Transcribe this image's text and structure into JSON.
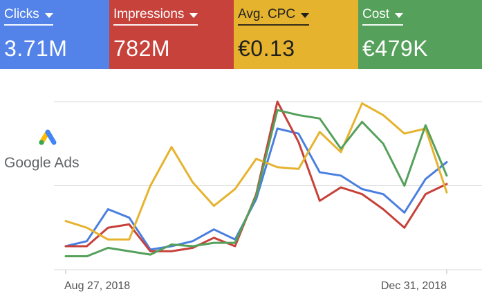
{
  "metrics": [
    {
      "label": "Clicks",
      "value": "3.71M",
      "color": "#5383e8"
    },
    {
      "label": "Impressions",
      "value": "782M",
      "color": "#c6423b"
    },
    {
      "label": "Avg. CPC",
      "value": "€0.13",
      "color": "#e6b32e"
    },
    {
      "label": "Cost",
      "value": "€479K",
      "color": "#55a05a"
    }
  ],
  "logo": {
    "text": "Google Ads"
  },
  "chart_data": {
    "type": "line",
    "x": [
      "Aug 27, 2018",
      "",
      "",
      "",
      "",
      "",
      "",
      "",
      "",
      "",
      "",
      "",
      "",
      "",
      "",
      "",
      "",
      "",
      "Dec 31, 2018"
    ],
    "xtick_labels": [
      "Aug 27, 2018",
      "Dec 31, 2018"
    ],
    "ylim": [
      0,
      100
    ],
    "grid": true,
    "series": [
      {
        "color": "#4a7fe0",
        "values": [
          14,
          17,
          36,
          31,
          12,
          14,
          17,
          24,
          18,
          42,
          84,
          81,
          58,
          56,
          48,
          45,
          34,
          54,
          64
        ]
      },
      {
        "color": "#c6413a",
        "values": [
          14,
          14,
          25,
          27,
          11,
          11,
          13,
          19,
          14,
          45,
          100,
          76,
          41,
          49,
          45,
          36,
          25,
          45,
          51
        ]
      },
      {
        "color": "#e6b32e",
        "values": [
          29,
          25,
          18,
          18,
          50,
          73,
          52,
          38,
          48,
          66,
          61,
          60,
          82,
          70,
          99,
          92,
          81,
          84,
          46
        ]
      },
      {
        "color": "#55a05a",
        "values": [
          8,
          8,
          13,
          11,
          9,
          15,
          14,
          16,
          16,
          44,
          95,
          92,
          90,
          72,
          88,
          75,
          50,
          86,
          56
        ]
      }
    ]
  }
}
